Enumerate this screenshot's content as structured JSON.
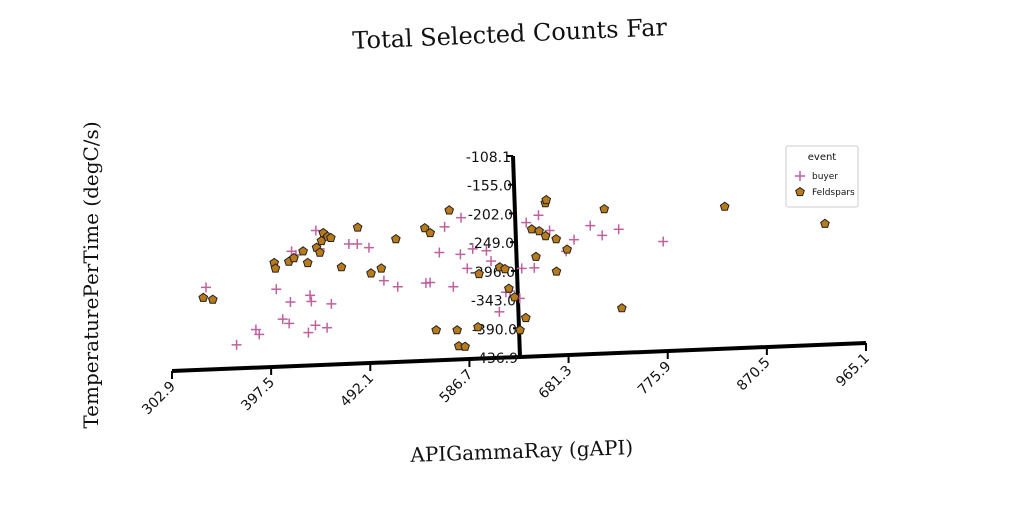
{
  "chart_data": {
    "type": "scatter",
    "title": "Total Selected Counts Far",
    "xlabel": "APIGammaRay (gAPI)",
    "ylabel": "TemperaturePerTime (degC/s)",
    "xlim": [
      302.9,
      965.1
    ],
    "ylim": [
      -436.9,
      -108.1
    ],
    "x_ticks": [
      "302.9",
      "397.5",
      "492.1",
      "586.7",
      "681.3",
      "775.9",
      "870.5",
      "965.1"
    ],
    "y_ticks": [
      "-108.1",
      "-155.0",
      "-202.0",
      "-249.0",
      "-296.0",
      "-343.0",
      "-390.0",
      "-436.9"
    ],
    "legend": {
      "title": "event",
      "position": "top-right",
      "entries": [
        "buyer",
        "Feldspars"
      ]
    },
    "colors": {
      "buyer": "#c0609f",
      "Feldspars": "#b87a1a"
    },
    "series": [
      {
        "name": "buyer",
        "marker": "plus",
        "x": [
          338,
          365,
          384,
          387,
          405,
          410,
          416,
          418,
          421,
          425,
          434,
          437,
          438,
          441,
          445,
          448,
          452,
          457,
          476,
          484,
          495,
          508,
          521,
          548,
          552,
          562,
          568,
          574,
          582,
          584,
          588,
          594,
          607,
          611,
          617,
          624,
          628,
          637,
          640,
          646,
          652,
          658,
          668,
          683,
          691,
          707,
          718,
          734,
          776
        ],
        "y": [
          -323,
          -417,
          -392,
          -400,
          -326,
          -375,
          -382,
          -347,
          -264,
          -270,
          -397,
          -336,
          -346,
          -385,
          -230,
          -260,
          -389,
          -350,
          -252,
          -252,
          -258,
          -312,
          -322,
          -316,
          -315,
          -266,
          -224,
          -322,
          -269,
          -209,
          -292,
          -260,
          -263,
          -280,
          -363,
          -331,
          -329,
          -341,
          -292,
          -217,
          -291,
          -205,
          -230,
          -264,
          -245,
          -222,
          -238,
          -228,
          -248
        ]
      },
      {
        "name": "Feldspars",
        "marker": "pentagon",
        "x": [
          335,
          344,
          404,
          405,
          418,
          423,
          432,
          436,
          445,
          448,
          450,
          452,
          456,
          459,
          468,
          485,
          496,
          506,
          521,
          549,
          554,
          556,
          573,
          576,
          577,
          583,
          596,
          599,
          619,
          624,
          627,
          632,
          636,
          642,
          651,
          654,
          658,
          664,
          665,
          666,
          673,
          674,
          684,
          721,
          734,
          836,
          931
        ],
        "y": [
          -340,
          -343,
          -283,
          -292,
          -281,
          -275,
          -264,
          -283,
          -258,
          -266,
          -247,
          -234,
          -240,
          -242,
          -290,
          -225,
          -300,
          -292,
          -244,
          -226,
          -234,
          -393,
          -197,
          -393,
          -419,
          -420,
          -388,
          -301,
          -290,
          -293,
          -325,
          -339,
          -393,
          -373,
          -228,
          -273,
          -231,
          -239,
          -185,
          -180,
          -297,
          -244,
          -261,
          -195,
          -357,
          -191,
          -219
        ]
      }
    ]
  }
}
